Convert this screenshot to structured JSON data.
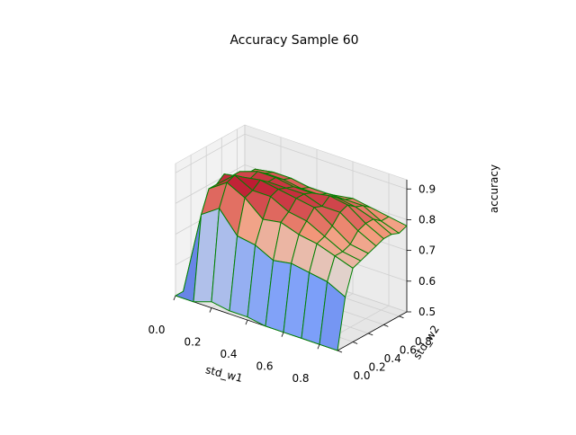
{
  "chart_data": {
    "type": "surface",
    "title": "Accuracy Sample 60",
    "xlabel": "std_w1",
    "ylabel": "std_w2",
    "zlabel": "accuracy",
    "x": [
      0.0,
      0.1,
      0.2,
      0.3,
      0.4,
      0.5,
      0.6,
      0.7,
      0.8,
      0.9
    ],
    "y": [
      0.0,
      0.1,
      0.2,
      0.3,
      0.4,
      0.5,
      0.6,
      0.7,
      0.8,
      0.9
    ],
    "xticks": [
      "0.0",
      "0.2",
      "0.4",
      "0.6",
      "0.8"
    ],
    "yticks": [
      "0.0",
      "0.2",
      "0.4",
      "0.6",
      "0.8"
    ],
    "zticks": [
      "0.5",
      "0.6",
      "0.7",
      "0.8",
      "0.9"
    ],
    "xlim": [
      0.0,
      0.9
    ],
    "ylim": [
      0.0,
      0.9
    ],
    "zlim": [
      0.5,
      0.93
    ],
    "z": [
      [
        0.5,
        0.5,
        0.5,
        0.5,
        0.5,
        0.5,
        0.5,
        0.5,
        0.5,
        0.5
      ],
      [
        0.5,
        0.77,
        0.84,
        0.84,
        0.86,
        0.84,
        0.84,
        0.82,
        0.82,
        0.8
      ],
      [
        0.52,
        0.81,
        0.88,
        0.89,
        0.87,
        0.85,
        0.86,
        0.84,
        0.83,
        0.8
      ],
      [
        0.51,
        0.74,
        0.85,
        0.86,
        0.88,
        0.86,
        0.86,
        0.84,
        0.83,
        0.8
      ],
      [
        0.51,
        0.73,
        0.8,
        0.86,
        0.87,
        0.86,
        0.85,
        0.83,
        0.82,
        0.79
      ],
      [
        0.5,
        0.7,
        0.81,
        0.83,
        0.86,
        0.86,
        0.85,
        0.83,
        0.82,
        0.8
      ],
      [
        0.5,
        0.71,
        0.79,
        0.82,
        0.85,
        0.84,
        0.86,
        0.84,
        0.82,
        0.81
      ],
      [
        0.5,
        0.7,
        0.78,
        0.79,
        0.81,
        0.84,
        0.85,
        0.83,
        0.82,
        0.8
      ],
      [
        0.5,
        0.69,
        0.76,
        0.76,
        0.77,
        0.8,
        0.81,
        0.81,
        0.79,
        0.79
      ],
      [
        0.5,
        0.66,
        0.74,
        0.75,
        0.76,
        0.77,
        0.78,
        0.78,
        0.77,
        0.78
      ]
    ],
    "colormap": "coolwarm",
    "edge_color": "#008000",
    "grid": true
  }
}
